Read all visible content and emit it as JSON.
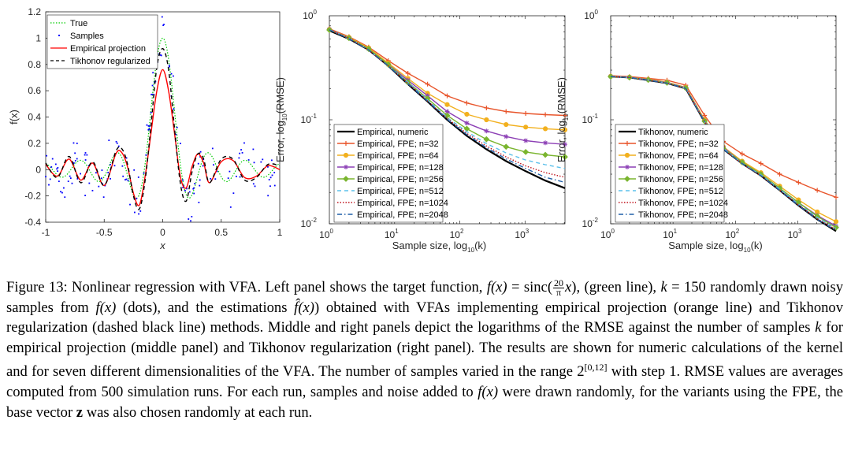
{
  "caption": {
    "p1": "Figure 13:  Nonlinear regression with VFA. Left panel shows the target function, ",
    "fx": "f(x)",
    "eq": " = sinc(",
    "frac_num": "20",
    "frac_den": "π",
    "x1": "x",
    "p2": "), (green line), ",
    "k": "k",
    "p3": " = 150 randomly drawn noisy samples from ",
    "fx2": "f(x)",
    "p4": " (dots), and the estimations ",
    "fhat": "f̂(x)",
    "p5": ") obtained with VFAs implementing empirical projection (orange line) and Tikhonov regularization (dashed black line) methods. Middle and right panels depict the logarithms of the RMSE against the number of samples ",
    "k2": "k",
    "p6": " for empirical projection (middle panel) and Tikhonov regularization (right panel).  The results are shown for numeric calculations of the kernel and for seven different dimensionalities of the VFA. The number of samples varied in the range 2",
    "range_sup": "[0,12]",
    "p7": " with step 1. RMSE values are averages computed from 500 simulation runs. For each run, samples and noise added to ",
    "fx3": "f(x)",
    "p8": " were drawn randomly, for the variants using the FPE, the base vector ",
    "z": "z",
    "p9": " was also chosen randomly at each run."
  },
  "chart_data": [
    {
      "type": "line",
      "xlabel": "x",
      "ylabel": "f(x)",
      "xlim": [
        -1,
        1
      ],
      "ylim": [
        -0.4,
        1.2
      ],
      "xticks": [
        -1,
        -0.5,
        0,
        0.5,
        1
      ],
      "xtick_labels": [
        "-1",
        "-0.5",
        "0",
        "0.5",
        "1"
      ],
      "yticks": [
        -0.4,
        -0.2,
        0,
        0.2,
        0.4,
        0.6,
        0.8,
        1,
        1.2
      ],
      "ytick_labels": [
        "-0.4",
        "-0.2",
        "0",
        "0.2",
        "0.4",
        "0.6",
        "0.8",
        "1",
        "1.2"
      ],
      "legend_position": "top-left",
      "legend": [
        {
          "name": "True",
          "color": "#00cc00",
          "style": "dotted"
        },
        {
          "name": "Samples",
          "color": "#0000ff",
          "style": "dots"
        },
        {
          "name": "Empirical projection",
          "color": "#ff0000",
          "style": "solid"
        },
        {
          "name": "Tikhonov regularized",
          "color": "#000000",
          "style": "dashed"
        }
      ],
      "series": [
        {
          "name": "True",
          "function": "sinc(20x/π)",
          "peak": 1.0
        },
        {
          "name": "Empirical projection",
          "x": [
            -1,
            -0.9,
            -0.8,
            -0.7,
            -0.6,
            -0.5,
            -0.4,
            -0.35,
            -0.3,
            -0.25,
            -0.2,
            -0.15,
            -0.1,
            -0.05,
            0,
            0.05,
            0.1,
            0.15,
            0.2,
            0.25,
            0.3,
            0.35,
            0.4,
            0.5,
            0.6,
            0.7,
            0.8,
            0.9,
            1
          ],
          "y": [
            0.04,
            -0.05,
            0.08,
            -0.08,
            0.05,
            -0.12,
            0.12,
            0.13,
            0.02,
            -0.18,
            -0.27,
            -0.05,
            0.28,
            0.6,
            0.76,
            0.6,
            0.28,
            -0.05,
            -0.14,
            0.02,
            0.12,
            0.05,
            -0.1,
            0.06,
            0.07,
            -0.06,
            -0.05,
            0.03,
            0.0
          ]
        },
        {
          "name": "Tikhonov regularized",
          "x": [
            -1,
            -0.9,
            -0.8,
            -0.7,
            -0.6,
            -0.5,
            -0.4,
            -0.35,
            -0.3,
            -0.25,
            -0.2,
            -0.15,
            -0.1,
            -0.05,
            0,
            0.05,
            0.1,
            0.15,
            0.2,
            0.25,
            0.3,
            0.35,
            0.4,
            0.5,
            0.6,
            0.7,
            0.8,
            0.9,
            1
          ],
          "y": [
            0.05,
            -0.06,
            0.1,
            -0.1,
            0.06,
            -0.12,
            0.14,
            0.16,
            0.04,
            -0.2,
            -0.3,
            -0.08,
            0.34,
            0.78,
            0.92,
            0.76,
            0.32,
            -0.1,
            -0.24,
            -0.02,
            0.12,
            0.08,
            -0.1,
            0.08,
            0.08,
            -0.08,
            -0.06,
            0.04,
            0.03
          ]
        }
      ]
    },
    {
      "type": "line",
      "xlabel": "Sample size, log10(k)",
      "ylabel": "Error, log10(RMSE)",
      "log_x": true,
      "log_y": true,
      "xlim": [
        1,
        4096
      ],
      "ylim": [
        0.01,
        1
      ],
      "legend_position": "bottom-left",
      "x": [
        1,
        2,
        4,
        8,
        16,
        32,
        64,
        128,
        256,
        512,
        1024,
        2048,
        4096
      ],
      "series": [
        {
          "name": "Empirical, numeric",
          "color": "#000000",
          "style": "solid-thick",
          "values": [
            0.72,
            0.6,
            0.47,
            0.33,
            0.22,
            0.15,
            0.1,
            0.07,
            0.052,
            0.04,
            0.032,
            0.026,
            0.022
          ]
        },
        {
          "name": "Empirical, FPE; n=32",
          "color": "#e8542a",
          "style": "plus",
          "values": [
            0.75,
            0.63,
            0.5,
            0.37,
            0.28,
            0.22,
            0.17,
            0.145,
            0.13,
            0.12,
            0.115,
            0.112,
            0.11
          ]
        },
        {
          "name": "Empirical, FPE; n=64",
          "color": "#f2b01e",
          "style": "circle",
          "values": [
            0.74,
            0.62,
            0.49,
            0.35,
            0.25,
            0.18,
            0.14,
            0.113,
            0.1,
            0.09,
            0.085,
            0.082,
            0.08
          ]
        },
        {
          "name": "Empirical, FPE; n=128",
          "color": "#8c3fb5",
          "style": "star",
          "values": [
            0.74,
            0.61,
            0.48,
            0.34,
            0.24,
            0.17,
            0.12,
            0.093,
            0.078,
            0.069,
            0.063,
            0.06,
            0.058
          ]
        },
        {
          "name": "Empirical, FPE; n=256",
          "color": "#7ab52f",
          "style": "diamond",
          "values": [
            0.73,
            0.61,
            0.48,
            0.34,
            0.23,
            0.16,
            0.11,
            0.082,
            0.065,
            0.055,
            0.049,
            0.046,
            0.044
          ]
        },
        {
          "name": "Empirical, FPE; n=512",
          "color": "#5bc0eb",
          "style": "dashed",
          "values": [
            0.73,
            0.61,
            0.47,
            0.33,
            0.23,
            0.155,
            0.105,
            0.077,
            0.059,
            0.048,
            0.041,
            0.037,
            0.034
          ]
        },
        {
          "name": "Empirical, FPE; n=1024",
          "color": "#c0141e",
          "style": "dotted",
          "values": [
            0.73,
            0.61,
            0.47,
            0.33,
            0.225,
            0.152,
            0.103,
            0.074,
            0.056,
            0.044,
            0.036,
            0.031,
            0.028
          ]
        },
        {
          "name": "Empirical, FPE; n=2048",
          "color": "#1f5fa8",
          "style": "dashdot",
          "values": [
            0.73,
            0.6,
            0.47,
            0.33,
            0.222,
            0.151,
            0.101,
            0.072,
            0.054,
            0.042,
            0.034,
            0.028,
            0.025
          ]
        }
      ]
    },
    {
      "type": "line",
      "xlabel": "Sample size, log10(k)",
      "ylabel": "Error, log10(RMSE)",
      "log_x": true,
      "log_y": true,
      "xlim": [
        1,
        4096
      ],
      "ylim": [
        0.01,
        1
      ],
      "legend_position": "bottom-left",
      "x": [
        1,
        2,
        4,
        8,
        16,
        32,
        64,
        128,
        256,
        512,
        1024,
        2048,
        4096
      ],
      "series": [
        {
          "name": "Tikhonov, numeric",
          "color": "#000000",
          "style": "solid-thick",
          "values": [
            0.26,
            0.255,
            0.24,
            0.225,
            0.2,
            0.095,
            0.052,
            0.038,
            0.029,
            0.021,
            0.015,
            0.011,
            0.0085
          ]
        },
        {
          "name": "Tikhonov, FPE; n=32",
          "color": "#e8542a",
          "style": "plus",
          "values": [
            0.265,
            0.26,
            0.25,
            0.24,
            0.215,
            0.11,
            0.062,
            0.047,
            0.038,
            0.03,
            0.025,
            0.021,
            0.018
          ]
        },
        {
          "name": "Tikhonov, FPE; n=64",
          "color": "#f2b01e",
          "style": "circle",
          "values": [
            0.262,
            0.257,
            0.245,
            0.23,
            0.205,
            0.1,
            0.055,
            0.04,
            0.031,
            0.023,
            0.017,
            0.013,
            0.0105
          ]
        },
        {
          "name": "Tikhonov, FPE; n=128",
          "color": "#8c3fb5",
          "style": "star",
          "values": [
            0.261,
            0.256,
            0.243,
            0.228,
            0.203,
            0.098,
            0.054,
            0.039,
            0.03,
            0.022,
            0.016,
            0.012,
            0.0095
          ]
        },
        {
          "name": "Tikhonov, FPE; n=256",
          "color": "#7ab52f",
          "style": "diamond",
          "values": [
            0.26,
            0.255,
            0.242,
            0.227,
            0.202,
            0.097,
            0.053,
            0.039,
            0.03,
            0.022,
            0.016,
            0.0118,
            0.0092
          ]
        },
        {
          "name": "Tikhonov, FPE; n=512",
          "color": "#5bc0eb",
          "style": "dashed",
          "values": [
            0.26,
            0.255,
            0.241,
            0.226,
            0.201,
            0.096,
            0.053,
            0.038,
            0.0295,
            0.0215,
            0.0155,
            0.0115,
            0.009
          ]
        },
        {
          "name": "Tikhonov, FPE; n=1024",
          "color": "#c0141e",
          "style": "dotted",
          "values": [
            0.26,
            0.255,
            0.241,
            0.226,
            0.201,
            0.096,
            0.052,
            0.038,
            0.029,
            0.021,
            0.0152,
            0.0112,
            0.0088
          ]
        },
        {
          "name": "Tikhonov, FPE; n=2048",
          "color": "#1f5fa8",
          "style": "dashdot",
          "values": [
            0.26,
            0.255,
            0.24,
            0.225,
            0.2,
            0.095,
            0.052,
            0.038,
            0.029,
            0.021,
            0.015,
            0.011,
            0.0086
          ]
        }
      ]
    }
  ]
}
